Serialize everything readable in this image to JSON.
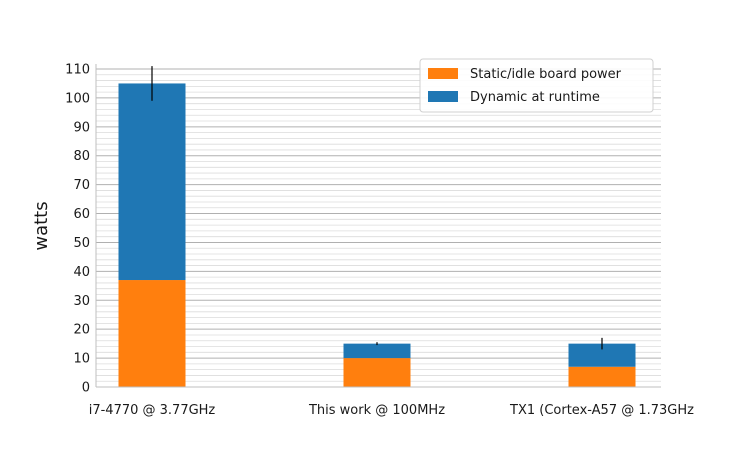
{
  "chart_data": {
    "type": "bar",
    "stacked": true,
    "categories": [
      "i7-4770 @ 3.77GHz",
      "This work @ 100MHz",
      "TX1 (Cortex-A57 @ 1.73GHz"
    ],
    "series": [
      {
        "name": "Static/idle board power",
        "color": "#ff7f0e",
        "values": [
          37,
          10,
          7
        ]
      },
      {
        "name": "Dynamic at runtime",
        "color": "#1f77b4",
        "values": [
          68,
          5,
          8
        ]
      }
    ],
    "error_bars": [
      {
        "low": 99,
        "high": 111
      },
      {
        "low": 14.5,
        "high": 15.5
      },
      {
        "low": 13,
        "high": 17
      }
    ],
    "title": "",
    "xlabel": "",
    "ylabel": "watts",
    "ylim": [
      0,
      110
    ],
    "yticks": [
      "0",
      "10",
      "20",
      "30",
      "40",
      "50",
      "60",
      "70",
      "80",
      "90",
      "100",
      "110"
    ],
    "grid": true,
    "legend_position": "top-right"
  }
}
